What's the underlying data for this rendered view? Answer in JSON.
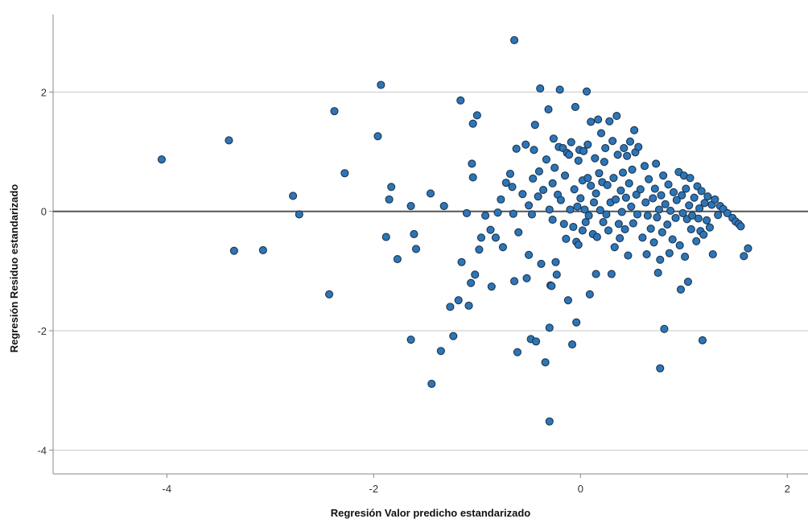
{
  "chart_data": {
    "type": "scatter",
    "title": "",
    "xlabel": "Regresión Valor predicho estandarizado",
    "ylabel": "Regresión Residuo estandarizado",
    "xlim": [
      -5.1,
      2.2
    ],
    "ylim": [
      -4.4,
      3.3
    ],
    "xticks": [
      -4,
      -2,
      0,
      2
    ],
    "yticks": [
      -4,
      -2,
      0,
      2
    ],
    "grid": "horizontal",
    "reference_line_y": 0,
    "colors": {
      "point": "#2e75b6",
      "point_edge": "#1a3550",
      "grid": "#c8c8c8",
      "reference": "#555555",
      "axis": "#888888"
    },
    "points": [
      [
        -4.05,
        0.87
      ],
      [
        -3.4,
        1.19
      ],
      [
        -3.35,
        -0.66
      ],
      [
        -3.07,
        -0.65
      ],
      [
        -2.78,
        0.26
      ],
      [
        -2.72,
        -0.05
      ],
      [
        -2.43,
        -1.39
      ],
      [
        -2.38,
        1.68
      ],
      [
        -2.28,
        0.64
      ],
      [
        -1.96,
        1.26
      ],
      [
        -1.93,
        2.12
      ],
      [
        -1.88,
        -0.43
      ],
      [
        -1.85,
        0.2
      ],
      [
        -1.83,
        0.41
      ],
      [
        -1.77,
        -0.8
      ],
      [
        -1.64,
        0.09
      ],
      [
        -1.64,
        -2.15
      ],
      [
        -1.61,
        -0.38
      ],
      [
        -1.59,
        -0.63
      ],
      [
        -1.45,
        0.3
      ],
      [
        -1.44,
        -2.89
      ],
      [
        -1.35,
        -2.34
      ],
      [
        -1.32,
        0.09
      ],
      [
        -1.26,
        -1.6
      ],
      [
        -1.23,
        -2.09
      ],
      [
        -1.18,
        -1.49
      ],
      [
        -1.16,
        1.86
      ],
      [
        -1.15,
        -0.85
      ],
      [
        -1.1,
        -0.03
      ],
      [
        -1.08,
        -1.58
      ],
      [
        -1.06,
        -1.2
      ],
      [
        -1.05,
        0.8
      ],
      [
        -1.04,
        0.57
      ],
      [
        -1.04,
        1.47
      ],
      [
        -1.02,
        -1.06
      ],
      [
        -1.0,
        1.61
      ],
      [
        -0.98,
        -0.64
      ],
      [
        -0.96,
        -0.44
      ],
      [
        -0.92,
        -0.07
      ],
      [
        -0.87,
        -0.31
      ],
      [
        -0.86,
        -1.26
      ],
      [
        -0.82,
        -0.44
      ],
      [
        -0.8,
        -0.02
      ],
      [
        -0.77,
        0.2
      ],
      [
        -0.75,
        -0.6
      ],
      [
        -0.72,
        0.48
      ],
      [
        -0.68,
        0.63
      ],
      [
        -0.66,
        0.41
      ],
      [
        -0.65,
        -0.04
      ],
      [
        -0.64,
        -1.17
      ],
      [
        -0.64,
        2.87
      ],
      [
        -0.62,
        1.05
      ],
      [
        -0.61,
        -2.36
      ],
      [
        -0.6,
        -0.35
      ],
      [
        -0.56,
        0.29
      ],
      [
        -0.53,
        1.12
      ],
      [
        -0.52,
        -1.12
      ],
      [
        -0.5,
        0.1
      ],
      [
        -0.5,
        -0.73
      ],
      [
        -0.48,
        -2.14
      ],
      [
        -0.47,
        -0.05
      ],
      [
        -0.46,
        0.55
      ],
      [
        -0.45,
        1.03
      ],
      [
        -0.44,
        1.45
      ],
      [
        -0.43,
        -2.18
      ],
      [
        -0.41,
        0.25
      ],
      [
        -0.4,
        0.67
      ],
      [
        -0.39,
        2.06
      ],
      [
        -0.38,
        -0.88
      ],
      [
        -0.36,
        0.36
      ],
      [
        -0.34,
        -2.53
      ],
      [
        -0.33,
        0.87
      ],
      [
        -0.31,
        1.71
      ],
      [
        -0.3,
        -1.95
      ],
      [
        -0.3,
        0.03
      ],
      [
        -0.3,
        -3.52
      ],
      [
        -0.29,
        -1.24
      ],
      [
        -0.28,
        -1.25
      ],
      [
        -0.27,
        0.47
      ],
      [
        -0.27,
        -0.14
      ],
      [
        -0.26,
        1.22
      ],
      [
        -0.25,
        0.73
      ],
      [
        -0.24,
        -0.85
      ],
      [
        -0.23,
        -1.06
      ],
      [
        -0.22,
        0.28
      ],
      [
        -0.21,
        1.08
      ],
      [
        -0.2,
        2.04
      ],
      [
        -0.19,
        0.19
      ],
      [
        -0.17,
        1.06
      ],
      [
        -0.16,
        -0.21
      ],
      [
        -0.15,
        0.6
      ],
      [
        -0.14,
        -0.46
      ],
      [
        -0.13,
        0.98
      ],
      [
        -0.12,
        -1.49
      ],
      [
        -0.11,
        0.95
      ],
      [
        -0.1,
        0.03
      ],
      [
        -0.09,
        1.16
      ],
      [
        -0.08,
        -2.23
      ],
      [
        -0.07,
        -0.26
      ],
      [
        -0.06,
        0.37
      ],
      [
        -0.05,
        1.75
      ],
      [
        -0.04,
        -0.51
      ],
      [
        -0.04,
        -1.86
      ],
      [
        -0.03,
        0.08
      ],
      [
        -0.02,
        0.85
      ],
      [
        -0.02,
        -0.56
      ],
      [
        -0.01,
        1.03
      ],
      [
        0.0,
        0.22
      ],
      [
        0.02,
        -0.32
      ],
      [
        0.02,
        0.52
      ],
      [
        0.03,
        1.01
      ],
      [
        0.04,
        0.03
      ],
      [
        0.05,
        -0.18
      ],
      [
        0.06,
        2.01
      ],
      [
        0.07,
        0.56
      ],
      [
        0.07,
        1.12
      ],
      [
        0.08,
        -0.07
      ],
      [
        0.09,
        -1.39
      ],
      [
        0.1,
        0.43
      ],
      [
        0.1,
        1.5
      ],
      [
        0.12,
        -0.38
      ],
      [
        0.13,
        0.15
      ],
      [
        0.14,
        0.89
      ],
      [
        0.15,
        -1.05
      ],
      [
        0.15,
        0.3
      ],
      [
        0.16,
        -0.43
      ],
      [
        0.17,
        1.54
      ],
      [
        0.18,
        0.64
      ],
      [
        0.19,
        0.02
      ],
      [
        0.2,
        1.31
      ],
      [
        0.21,
        0.49
      ],
      [
        0.22,
        -0.18
      ],
      [
        0.23,
        0.83
      ],
      [
        0.24,
        1.06
      ],
      [
        0.25,
        -0.05
      ],
      [
        0.26,
        0.44
      ],
      [
        0.27,
        -0.32
      ],
      [
        0.28,
        1.51
      ],
      [
        0.29,
        0.15
      ],
      [
        0.3,
        -1.05
      ],
      [
        0.31,
        1.18
      ],
      [
        0.32,
        0.56
      ],
      [
        0.33,
        -0.6
      ],
      [
        0.34,
        0.2
      ],
      [
        0.35,
        1.6
      ],
      [
        0.36,
        0.95
      ],
      [
        0.37,
        -0.21
      ],
      [
        0.38,
        -0.45
      ],
      [
        0.39,
        0.35
      ],
      [
        0.4,
        -0.01
      ],
      [
        0.41,
        0.65
      ],
      [
        0.42,
        1.06
      ],
      [
        0.43,
        -0.3
      ],
      [
        0.44,
        0.23
      ],
      [
        0.45,
        0.93
      ],
      [
        0.46,
        -0.74
      ],
      [
        0.47,
        0.47
      ],
      [
        0.48,
        1.17
      ],
      [
        0.49,
        0.08
      ],
      [
        0.5,
        0.7
      ],
      [
        0.51,
        -0.2
      ],
      [
        0.52,
        1.36
      ],
      [
        0.53,
        0.99
      ],
      [
        0.54,
        0.28
      ],
      [
        0.55,
        -0.05
      ],
      [
        0.56,
        1.08
      ],
      [
        0.58,
        0.37
      ],
      [
        0.6,
        -0.44
      ],
      [
        0.62,
        0.76
      ],
      [
        0.63,
        0.15
      ],
      [
        0.64,
        -0.72
      ],
      [
        0.65,
        -0.07
      ],
      [
        0.66,
        0.54
      ],
      [
        0.68,
        -0.29
      ],
      [
        0.7,
        0.22
      ],
      [
        0.71,
        -0.52
      ],
      [
        0.72,
        0.38
      ],
      [
        0.73,
        0.8
      ],
      [
        0.74,
        -0.1
      ],
      [
        0.75,
        -1.03
      ],
      [
        0.76,
        0.03
      ],
      [
        0.77,
        -0.81
      ],
      [
        0.77,
        -2.63
      ],
      [
        0.78,
        0.27
      ],
      [
        0.79,
        -0.35
      ],
      [
        0.8,
        0.6
      ],
      [
        0.81,
        -1.97
      ],
      [
        0.82,
        0.12
      ],
      [
        0.84,
        -0.22
      ],
      [
        0.85,
        0.45
      ],
      [
        0.86,
        -0.7
      ],
      [
        0.87,
        0.01
      ],
      [
        0.89,
        -0.47
      ],
      [
        0.9,
        0.32
      ],
      [
        0.92,
        -0.11
      ],
      [
        0.93,
        0.19
      ],
      [
        0.95,
        0.66
      ],
      [
        0.96,
        -0.57
      ],
      [
        0.97,
        -1.31
      ],
      [
        0.98,
        0.27
      ],
      [
        0.99,
        -0.03
      ],
      [
        1.0,
        0.6
      ],
      [
        1.01,
        -0.76
      ],
      [
        1.02,
        0.38
      ],
      [
        1.03,
        -0.13
      ],
      [
        1.04,
        -1.18
      ],
      [
        1.05,
        0.1
      ],
      [
        1.06,
        0.56
      ],
      [
        1.07,
        -0.3
      ],
      [
        1.08,
        -0.07
      ],
      [
        1.1,
        0.23
      ],
      [
        1.12,
        -0.5
      ],
      [
        1.13,
        0.42
      ],
      [
        1.14,
        -0.12
      ],
      [
        1.15,
        0.05
      ],
      [
        1.16,
        -0.33
      ],
      [
        1.17,
        0.34
      ],
      [
        1.18,
        -2.16
      ],
      [
        1.19,
        -0.39
      ],
      [
        1.2,
        0.14
      ],
      [
        1.22,
        -0.15
      ],
      [
        1.23,
        0.25
      ],
      [
        1.25,
        -0.27
      ],
      [
        1.27,
        0.11
      ],
      [
        1.28,
        -0.72
      ],
      [
        1.3,
        0.2
      ],
      [
        1.33,
        -0.06
      ],
      [
        1.35,
        0.09
      ],
      [
        1.38,
        0.04
      ],
      [
        1.42,
        -0.03
      ],
      [
        1.47,
        -0.11
      ],
      [
        1.5,
        -0.17
      ],
      [
        1.53,
        -0.21
      ],
      [
        1.55,
        -0.25
      ],
      [
        1.58,
        -0.75
      ],
      [
        1.62,
        -0.62
      ]
    ]
  }
}
